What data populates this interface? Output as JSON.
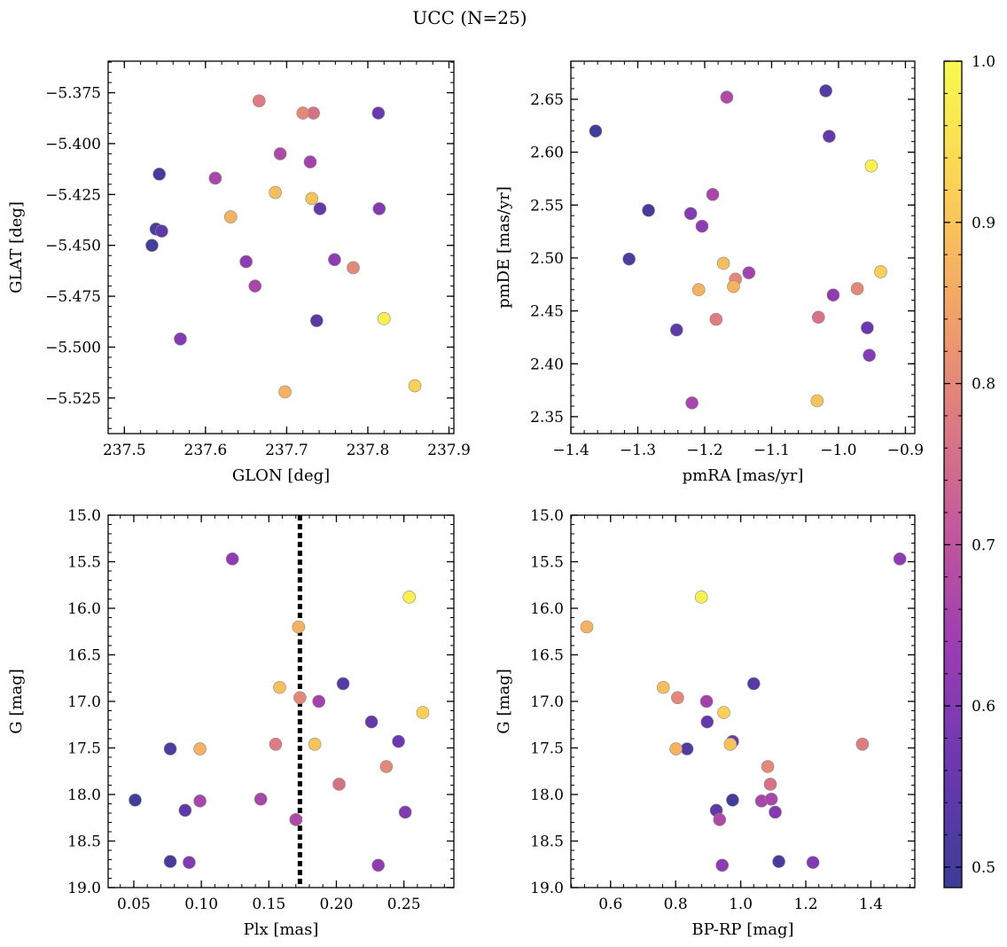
{
  "chart_data": {
    "type": "scatter",
    "title": "UCC (N=25)",
    "colorbar": {
      "min": 0.4873,
      "max": 1.0,
      "ticks": [
        0.5,
        0.6,
        0.7,
        0.8,
        0.9,
        1.0
      ],
      "tick_labels": [
        "0.5",
        "0.6",
        "0.7",
        "0.8",
        "0.9",
        "1.0"
      ],
      "colormap": "plasma",
      "stops": [
        "#3a3d96",
        "#6a38b0",
        "#9a3cb4",
        "#c2579c",
        "#de7c81",
        "#f4a864",
        "#fbd455",
        "#f8fa4f"
      ]
    },
    "stars": {
      "glon": [
        237.534,
        237.539,
        237.543,
        237.546,
        237.569,
        237.612,
        237.631,
        237.65,
        237.661,
        237.666,
        237.686,
        237.692,
        237.698,
        237.72,
        237.729,
        237.731,
        237.733,
        237.737,
        237.741,
        237.759,
        237.782,
        237.813,
        237.814,
        237.82,
        237.858
      ],
      "glat": [
        -5.45,
        -5.442,
        -5.415,
        -5.443,
        -5.496,
        -5.417,
        -5.436,
        -5.458,
        -5.47,
        -5.379,
        -5.424,
        -5.405,
        -5.522,
        -5.385,
        -5.409,
        -5.427,
        -5.385,
        -5.487,
        -5.432,
        -5.457,
        -5.461,
        -5.385,
        -5.432,
        -5.486,
        -5.519
      ],
      "pmra": [
        -1.363,
        -1.313,
        -1.284,
        -1.242,
        -1.221,
        -1.219,
        -1.209,
        -1.204,
        -1.188,
        -1.183,
        -1.172,
        -1.167,
        -1.157,
        -1.154,
        -1.134,
        -1.032,
        -1.03,
        -1.019,
        -1.014,
        -1.008,
        -0.972,
        -0.957,
        -0.954,
        -0.951,
        -0.937
      ],
      "pmde": [
        2.62,
        2.499,
        2.545,
        2.432,
        2.542,
        2.363,
        2.47,
        2.53,
        2.56,
        2.442,
        2.495,
        2.652,
        2.473,
        2.48,
        2.486,
        2.365,
        2.444,
        2.658,
        2.615,
        2.465,
        2.471,
        2.434,
        2.408,
        2.587,
        2.487
      ],
      "plx": [
        0.051,
        0.077,
        0.077,
        0.088,
        0.091,
        0.099,
        0.099,
        0.123,
        0.144,
        0.155,
        0.158,
        0.17,
        0.172,
        0.173,
        0.187,
        0.184,
        0.202,
        0.205,
        0.226,
        0.231,
        0.237,
        0.246,
        0.251,
        0.254,
        0.264
      ],
      "bp_rp": [
        0.975,
        0.835,
        1.117,
        0.925,
        1.222,
        1.064,
        0.801,
        1.489,
        1.094,
        1.374,
        0.762,
        0.935,
        0.527,
        0.806,
        0.895,
        0.968,
        1.091,
        1.04,
        0.897,
        0.943,
        1.083,
        0.975,
        1.106,
        0.879,
        0.948
      ],
      "g": [
        18.06,
        17.51,
        18.72,
        18.17,
        18.73,
        18.07,
        17.51,
        15.47,
        18.05,
        17.46,
        16.85,
        18.27,
        16.2,
        16.96,
        17.0,
        17.46,
        17.89,
        16.81,
        17.22,
        18.76,
        17.7,
        17.43,
        18.19,
        15.88,
        17.12
      ],
      "prob": [
        0.5,
        0.52,
        0.51,
        0.54,
        0.6,
        0.66,
        0.87,
        0.62,
        0.66,
        0.78,
        0.89,
        0.67,
        0.87,
        0.8,
        0.65,
        0.9,
        0.76,
        0.53,
        0.55,
        0.62,
        0.8,
        0.56,
        0.6,
        0.98,
        0.92
      ]
    },
    "panels": [
      {
        "id": "glon-glat",
        "x": "glon",
        "y": "glat",
        "xlabel": "GLON [deg]",
        "ylabel": "GLAT [deg]",
        "xlim": [
          237.48,
          237.906
        ],
        "ylim": [
          -5.5425,
          -5.3595
        ],
        "xticks": [
          237.5,
          237.6,
          237.7,
          237.8,
          237.9
        ],
        "xtick_labels": [
          "237.5",
          "237.6",
          "237.7",
          "237.8",
          "237.9"
        ],
        "yticks": [
          -5.375,
          -5.4,
          -5.425,
          -5.45,
          -5.475,
          -5.5,
          -5.525
        ],
        "ytick_labels": [
          "−5.375",
          "−5.400",
          "−5.425",
          "−5.450",
          "−5.475",
          "−5.500",
          "−5.525"
        ],
        "xminor": 0.02,
        "yminor": 0.005
      },
      {
        "id": "pmra-pmde",
        "x": "pmra",
        "y": "pmde",
        "xlabel": "pmRA [mas/yr]",
        "ylabel": "pmDE [mas/yr]",
        "xlim": [
          -1.4,
          -0.886
        ],
        "ylim": [
          2.334,
          2.686
        ],
        "xticks": [
          -1.4,
          -1.3,
          -1.2,
          -1.1,
          -1.0,
          -0.9
        ],
        "xtick_labels": [
          "−1.4",
          "−1.3",
          "−1.2",
          "−1.1",
          "−1.0",
          "−0.9"
        ],
        "yticks": [
          2.35,
          2.4,
          2.45,
          2.5,
          2.55,
          2.6,
          2.65
        ],
        "ytick_labels": [
          "2.35",
          "2.40",
          "2.45",
          "2.50",
          "2.55",
          "2.60",
          "2.65"
        ],
        "xminor": 0.02,
        "yminor": 0.01
      },
      {
        "id": "plx-g",
        "x": "plx",
        "y": "g",
        "xlabel": "Plx [mas]",
        "ylabel": "G [mag]",
        "xlim": [
          0.031,
          0.287
        ],
        "ylim": [
          19.0,
          15.0
        ],
        "xticks": [
          0.05,
          0.1,
          0.15,
          0.2,
          0.25
        ],
        "xtick_labels": [
          "0.05",
          "0.10",
          "0.15",
          "0.20",
          "0.25"
        ],
        "yticks": [
          15.0,
          15.5,
          16.0,
          16.5,
          17.0,
          17.5,
          18.0,
          18.5,
          19.0
        ],
        "ytick_labels": [
          "15.0",
          "15.5",
          "16.0",
          "16.5",
          "17.0",
          "17.5",
          "18.0",
          "18.5",
          "19.0"
        ],
        "xminor": 0.01,
        "yminor": 0.1,
        "vline": 0.173
      },
      {
        "id": "bprp-g",
        "x": "bp_rp",
        "y": "g",
        "xlabel": "BP-RP [mag]",
        "ylabel": "G [mag]",
        "xlim": [
          0.478,
          1.535
        ],
        "ylim": [
          19.0,
          15.0
        ],
        "xticks": [
          0.6,
          0.8,
          1.0,
          1.2,
          1.4
        ],
        "xtick_labels": [
          "0.6",
          "0.8",
          "1.0",
          "1.2",
          "1.4"
        ],
        "yticks": [
          15.0,
          15.5,
          16.0,
          16.5,
          17.0,
          17.5,
          18.0,
          18.5,
          19.0
        ],
        "ytick_labels": [
          "15.0",
          "15.5",
          "16.0",
          "16.5",
          "17.0",
          "17.5",
          "18.0",
          "18.5",
          "19.0"
        ],
        "xminor": 0.04,
        "yminor": 0.1
      }
    ]
  }
}
